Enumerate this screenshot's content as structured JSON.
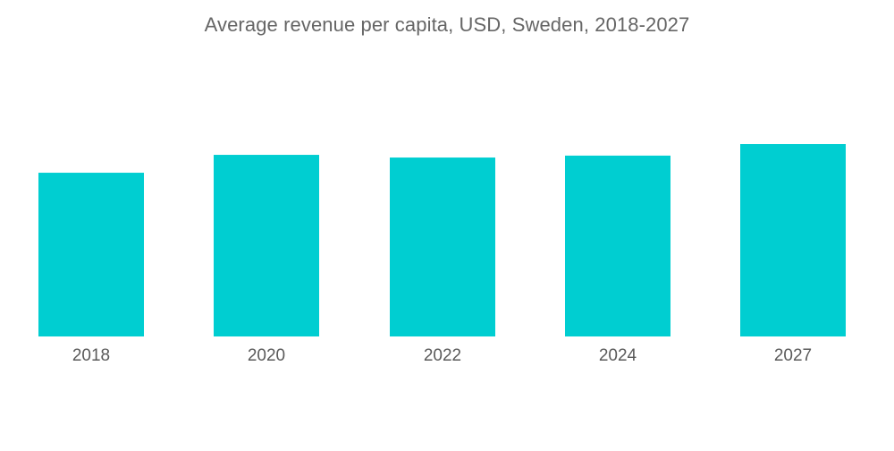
{
  "chart_data": {
    "type": "bar",
    "title": "Average revenue per capita, USD, Sweden, 2018-2027",
    "xlabel": "",
    "ylabel": "",
    "categories": [
      "2018",
      "2020",
      "2022",
      "2024",
      "2027"
    ],
    "values": [
      85.1,
      94.4,
      93.0,
      94.0,
      100.0
    ],
    "value_note": "No y-axis or data labels shown; values are relative bar heights (tallest = 100)",
    "ylim": [
      0,
      100
    ],
    "grid": false,
    "legend": "none",
    "bar_color": "#00CED1"
  }
}
